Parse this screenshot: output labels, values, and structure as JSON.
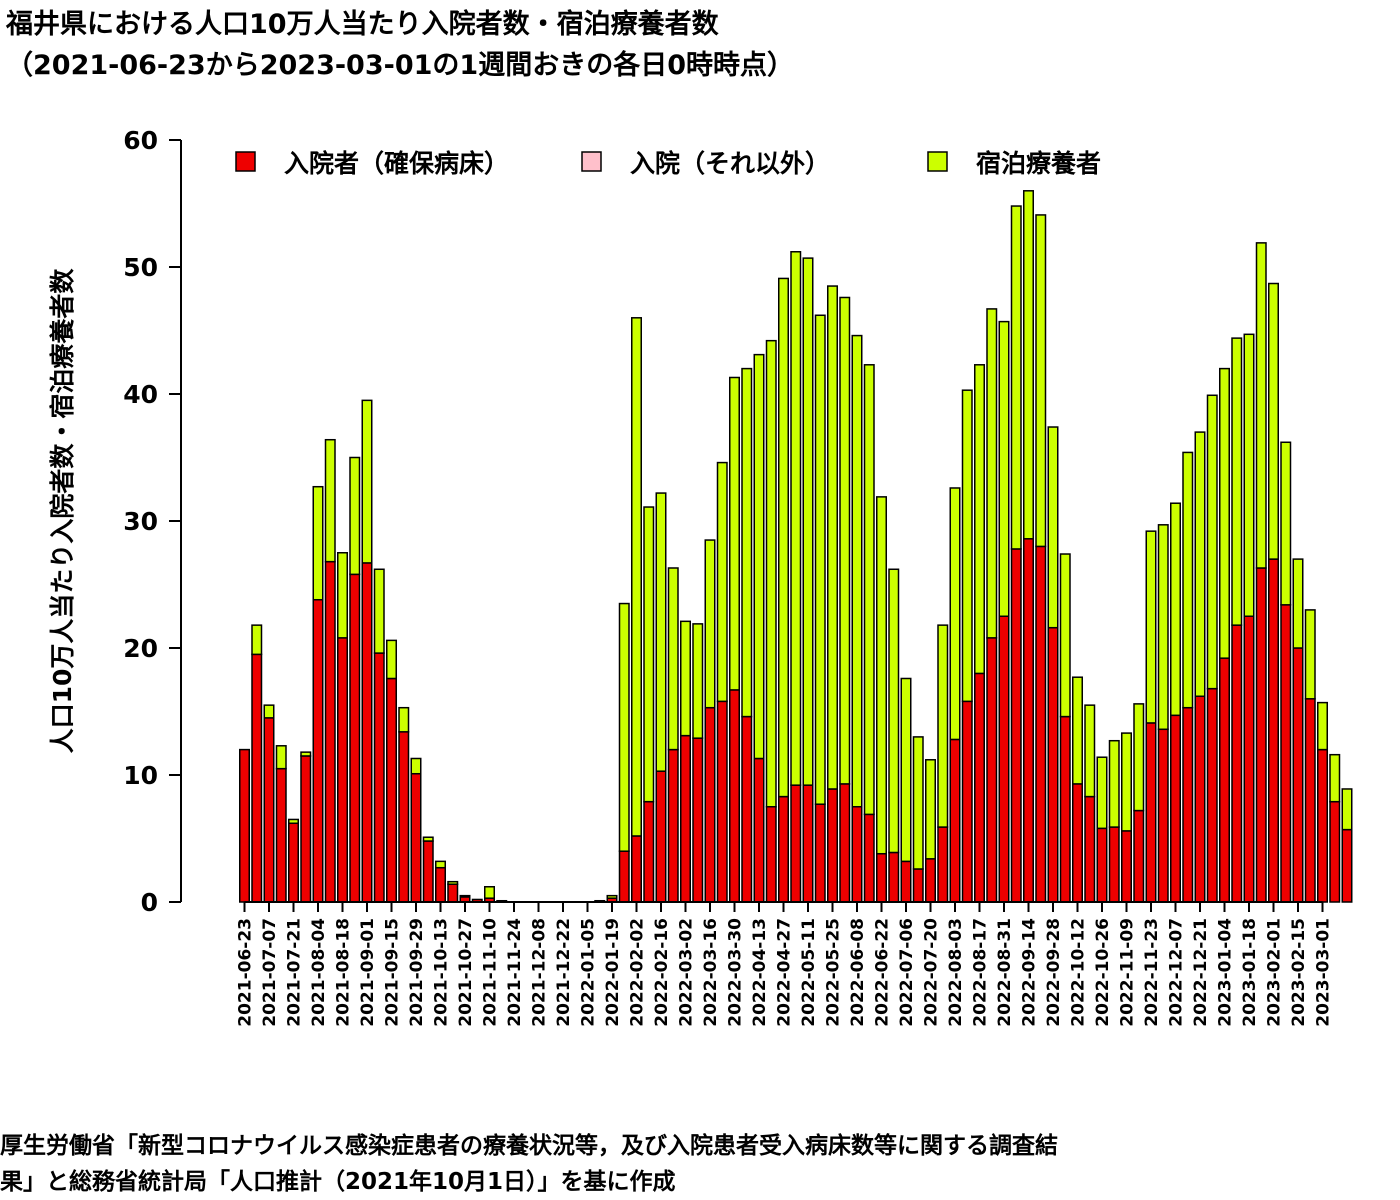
{
  "title": {
    "line1": "福井県における人口10万人当たり入院者数・宿泊療養者数",
    "line2": "（2021-06-23から2023-03-01の1週間おきの各日0時時点）"
  },
  "footer": {
    "line1": "厚生労働省「新型コロナウイルス感染症患者の療養状況等，及び入院患者受入病床数等に関する調査結",
    "line2": "果」と総務省統計局「人口推計（2021年10月1日）」を基に作成"
  },
  "colors": {
    "hospitalized_secured": "#ee0000",
    "hospitalized_other": "#ffc0cb",
    "hotel": "#ccff00",
    "axis": "#000000"
  },
  "chart_data": {
    "type": "bar",
    "stacked": true,
    "ylabel": "人口10万人当たり入院者数・宿泊療養者数",
    "ylim": [
      0,
      60
    ],
    "yticks": [
      0,
      10,
      20,
      30,
      40,
      50,
      60
    ],
    "grid": false,
    "legend_position": "top",
    "x_tick_labels": [
      "2021-06-23",
      "2021-07-07",
      "2021-07-21",
      "2021-08-04",
      "2021-08-18",
      "2021-09-01",
      "2021-09-15",
      "2021-09-29",
      "2021-10-13",
      "2021-10-27",
      "2021-11-10",
      "2021-11-24",
      "2021-12-08",
      "2021-12-22",
      "2022-01-05",
      "2022-01-19",
      "2022-02-02",
      "2022-02-16",
      "2022-03-02",
      "2022-03-16",
      "2022-03-30",
      "2022-04-13",
      "2022-04-27",
      "2022-05-11",
      "2022-05-25",
      "2022-06-08",
      "2022-06-22",
      "2022-07-06",
      "2022-07-20",
      "2022-08-03",
      "2022-08-17",
      "2022-08-31",
      "2022-09-14",
      "2022-09-28",
      "2022-10-12",
      "2022-10-26",
      "2022-11-09",
      "2022-11-23",
      "2022-12-07",
      "2022-12-21",
      "2023-01-04",
      "2023-01-18",
      "2023-02-01",
      "2023-02-15",
      "2023-03-01"
    ],
    "series": [
      {
        "name": "入院者（確保病床）",
        "color": "#ee0000",
        "values": [
          12.0,
          19.5,
          14.5,
          10.5,
          6.2,
          11.5,
          23.8,
          26.8,
          20.8,
          25.8,
          26.7,
          19.6,
          17.6,
          13.4,
          10.1,
          4.8,
          2.7,
          1.4,
          0.4,
          0.2,
          0.3,
          0,
          0,
          0,
          0,
          0,
          0,
          0,
          0,
          0.1,
          0.3,
          4.0,
          5.2,
          7.9,
          10.3,
          12.0,
          13.1,
          12.9,
          15.3,
          15.8,
          16.7,
          14.6,
          11.3,
          7.5,
          8.3,
          9.2,
          9.2,
          7.7,
          8.9,
          9.3,
          7.5,
          6.9,
          3.8,
          3.9,
          3.2,
          2.6,
          3.4,
          5.9,
          12.8,
          15.8,
          18.0,
          20.8,
          22.5,
          27.8,
          28.6,
          28.0,
          21.6,
          14.6,
          9.3,
          8.3,
          5.8,
          5.9,
          5.6,
          7.2,
          14.1,
          13.6,
          14.7,
          15.3,
          16.2,
          16.8,
          19.2,
          21.8,
          22.5,
          26.3,
          27.0,
          23.4,
          20.0,
          16.0,
          12.0,
          7.9,
          5.7
        ]
      },
      {
        "name": "入院（それ以外）",
        "color": "#ffc0cb",
        "values": [
          0,
          0,
          0,
          0,
          0,
          0,
          0,
          0,
          0,
          0,
          0,
          0,
          0,
          0,
          0,
          0,
          0,
          0,
          0,
          0,
          0,
          0,
          0,
          0,
          0,
          0,
          0,
          0,
          0,
          0,
          0,
          0,
          0,
          0,
          0,
          0,
          0,
          0,
          0,
          0,
          0,
          0,
          0,
          0,
          0,
          0,
          0,
          0,
          0,
          0,
          0,
          0,
          0,
          0,
          0,
          0,
          0,
          0,
          0,
          0,
          0,
          0,
          0,
          0,
          0,
          0,
          0,
          0,
          0,
          0,
          0,
          0,
          0,
          0,
          0,
          0,
          0,
          0,
          0,
          0,
          0,
          0,
          0,
          0,
          0,
          0,
          0,
          0,
          0,
          0,
          0
        ]
      },
      {
        "name": "宿泊療養者",
        "color": "#ccff00",
        "values": [
          0,
          2.3,
          1.0,
          1.8,
          0.3,
          0.3,
          8.9,
          9.6,
          6.7,
          9.2,
          12.8,
          6.6,
          3.0,
          1.9,
          1.2,
          0.3,
          0.5,
          0.2,
          0.1,
          0,
          0.9,
          0.1,
          0,
          0,
          0,
          0,
          0,
          0,
          0,
          0,
          0.2,
          19.5,
          40.8,
          23.2,
          21.9,
          14.3,
          9.0,
          9.0,
          13.2,
          18.8,
          24.6,
          27.4,
          31.8,
          36.7,
          40.8,
          42.0,
          41.5,
          38.5,
          39.6,
          38.3,
          37.1,
          35.4,
          28.1,
          22.3,
          14.4,
          10.4,
          7.8,
          15.9,
          19.8,
          24.5,
          24.3,
          25.9,
          23.2,
          27.0,
          27.4,
          26.1,
          15.8,
          12.8,
          8.4,
          7.2,
          5.6,
          6.8,
          7.7,
          8.4,
          15.1,
          16.1,
          16.7,
          20.1,
          20.8,
          23.1,
          22.8,
          22.6,
          22.2,
          25.6,
          21.7,
          12.8,
          7.0,
          7.0,
          3.7,
          3.7,
          3.2
        ]
      }
    ]
  }
}
